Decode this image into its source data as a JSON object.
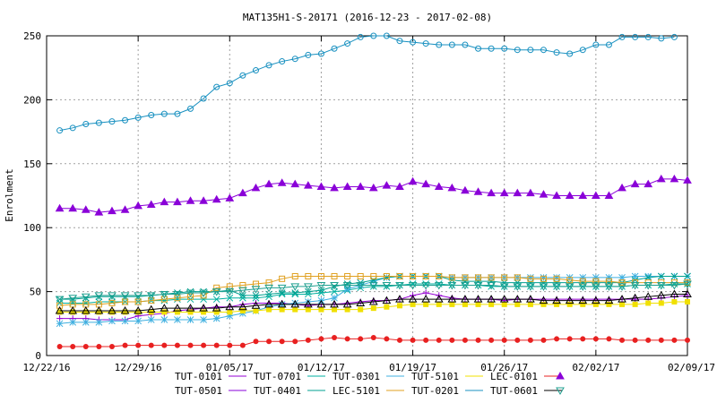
{
  "chart_data": {
    "type": "line",
    "title": "MAT135H1-S-20171 (2016-12-23 - 2017-02-08)",
    "xlabel": "",
    "ylabel": "Enrolment",
    "ylim": [
      0,
      250
    ],
    "yticks": [
      0,
      50,
      100,
      150,
      200,
      250
    ],
    "xticks": [
      "12/22/16",
      "12/29/16",
      "01/05/17",
      "01/12/17",
      "01/19/17",
      "01/26/17",
      "02/02/17",
      "02/09/17"
    ],
    "grid": true,
    "legend_position": "bottom",
    "x_start": "12/23/16",
    "x_step": "1 day",
    "series": [
      {
        "name": "TUT-0101",
        "color": "#9400d3",
        "marker": "plus",
        "values": [
          29,
          29,
          29,
          28,
          28,
          28,
          31,
          32,
          33,
          35,
          36,
          37,
          38,
          38,
          40,
          41,
          41,
          41,
          40,
          39,
          40,
          40,
          41,
          42,
          43,
          43,
          44,
          47,
          49,
          47,
          45,
          44,
          44,
          44,
          43,
          44,
          44,
          44,
          44,
          44,
          44,
          44,
          44,
          44,
          44,
          44,
          45,
          46,
          47
        ]
      },
      {
        "name": "TUT-0701",
        "color": "#00b0a0",
        "marker": "x",
        "values": [
          41,
          41,
          41,
          42,
          42,
          42,
          42,
          43,
          43,
          44,
          44,
          44,
          44,
          45,
          45,
          45,
          46,
          48,
          48,
          48,
          49,
          50,
          51,
          53,
          54,
          54,
          55,
          56,
          56,
          56,
          55,
          55,
          55,
          54,
          54,
          54,
          54,
          54,
          54,
          54,
          54,
          54,
          54,
          54,
          55,
          55,
          55,
          56,
          56
        ]
      },
      {
        "name": "TUT-0301",
        "color": "#40b0e0",
        "marker": "star",
        "values": [
          25,
          26,
          26,
          26,
          27,
          27,
          27,
          28,
          28,
          28,
          28,
          28,
          29,
          31,
          33,
          35,
          38,
          40,
          41,
          42,
          43,
          45,
          52,
          55,
          58,
          61,
          62,
          62,
          62,
          62,
          61,
          61,
          61,
          61,
          61,
          61,
          61,
          61,
          61,
          61,
          61,
          61,
          61,
          61,
          62,
          62,
          62,
          62,
          62
        ]
      },
      {
        "name": "TUT-5101",
        "color": "#f0e000",
        "marker": "square",
        "values": [
          34,
          34,
          34,
          34,
          34,
          34,
          34,
          34,
          34,
          34,
          34,
          34,
          34,
          34,
          35,
          35,
          36,
          36,
          36,
          36,
          36,
          36,
          36,
          36,
          37,
          38,
          39,
          40,
          40,
          40,
          40,
          40,
          40,
          40,
          40,
          40,
          40,
          40,
          40,
          40,
          40,
          40,
          40,
          40,
          40,
          41,
          41,
          42,
          42
        ]
      },
      {
        "name": "LEC-0101",
        "color": "#e82020",
        "marker": "dot",
        "values": [
          7,
          7,
          7,
          7,
          7,
          8,
          8,
          8,
          8,
          8,
          8,
          8,
          8,
          8,
          8,
          11,
          11,
          11,
          11,
          12,
          13,
          14,
          13,
          13,
          14,
          13,
          12,
          12,
          12,
          12,
          12,
          12,
          12,
          12,
          12,
          12,
          12,
          12,
          13,
          13,
          13,
          13,
          13,
          12,
          12,
          12,
          12,
          12,
          12
        ]
      },
      {
        "name": "TUT-0501",
        "color": "#8a00d8",
        "marker": "tri-up",
        "values": [
          115,
          115,
          114,
          112,
          113,
          114,
          117,
          118,
          120,
          120,
          121,
          121,
          122,
          123,
          127,
          131,
          134,
          135,
          134,
          133,
          132,
          131,
          132,
          132,
          131,
          133,
          132,
          136,
          134,
          132,
          131,
          129,
          128,
          127,
          127,
          127,
          127,
          126,
          125,
          125,
          125,
          125,
          125,
          131,
          134,
          134,
          138,
          138,
          137,
          144,
          145
        ]
      },
      {
        "name": "TUT-0401",
        "color": "#00a090",
        "marker": "x",
        "values": [
          44,
          44,
          45,
          46,
          46,
          46,
          46,
          47,
          48,
          49,
          50,
          50,
          50,
          51,
          47,
          47,
          48,
          49,
          49,
          50,
          51,
          54,
          56,
          57,
          59,
          61,
          62,
          62,
          62,
          62,
          59,
          58,
          58,
          58,
          57,
          57,
          57,
          57,
          57,
          57,
          57,
          57,
          57,
          57,
          59,
          61,
          62,
          62,
          62,
          62,
          62
        ]
      },
      {
        "name": "LEC-5101",
        "color": "#e0a020",
        "marker": "square-open",
        "values": [
          39,
          40,
          40,
          40,
          41,
          42,
          42,
          43,
          44,
          45,
          46,
          47,
          53,
          54,
          55,
          56,
          57,
          60,
          62,
          62,
          62,
          62,
          62,
          62,
          62,
          62,
          62,
          62,
          62,
          62,
          61,
          61,
          61,
          61,
          61,
          61,
          60,
          60,
          60,
          59,
          58,
          58,
          58,
          57,
          57,
          57,
          57,
          57,
          57
        ]
      },
      {
        "name": "TUT-0201",
        "color": "#1890c0",
        "marker": "circle-open",
        "values": [
          176,
          178,
          181,
          182,
          183,
          184,
          186,
          188,
          189,
          189,
          193,
          201,
          210,
          213,
          219,
          223,
          227,
          230,
          232,
          235,
          236,
          240,
          244,
          249,
          250,
          250,
          246,
          245,
          244,
          243,
          243,
          243,
          240,
          240,
          240,
          239,
          239,
          239,
          237,
          236,
          239,
          243,
          243,
          249,
          249,
          249,
          248,
          249
        ]
      },
      {
        "name": "TUT-0601",
        "color": "#000000",
        "marker": "tri-open",
        "values": [
          35,
          35,
          35,
          35,
          35,
          35,
          35,
          36,
          37,
          37,
          37,
          37,
          37,
          38,
          38,
          39,
          40,
          40,
          40,
          40,
          40,
          40,
          40,
          41,
          42,
          43,
          44,
          44,
          44,
          44,
          44,
          44,
          44,
          44,
          44,
          44,
          44,
          43,
          43,
          43,
          43,
          43,
          43,
          44,
          45,
          46,
          47,
          48,
          48
        ]
      },
      {
        "name": "",
        "color": "#20a090",
        "marker": "tri-down-open",
        "values": [
          44,
          45,
          46,
          47,
          47,
          47,
          47,
          47,
          48,
          48,
          49,
          49,
          50,
          50,
          51,
          52,
          53,
          53,
          54,
          54,
          55,
          55,
          55,
          55,
          55,
          55,
          55,
          55,
          55,
          55,
          55,
          55,
          55,
          55,
          54,
          54,
          54,
          54,
          54,
          54,
          54,
          54,
          54,
          54,
          55,
          55,
          55,
          55,
          56
        ]
      }
    ],
    "legend_rows": [
      [
        "TUT-0101",
        "TUT-0701",
        "TUT-0301",
        "TUT-5101",
        "LEC-0101"
      ],
      [
        "TUT-0501",
        "TUT-0401",
        "LEC-5101",
        "TUT-0201",
        "TUT-0601"
      ]
    ]
  }
}
